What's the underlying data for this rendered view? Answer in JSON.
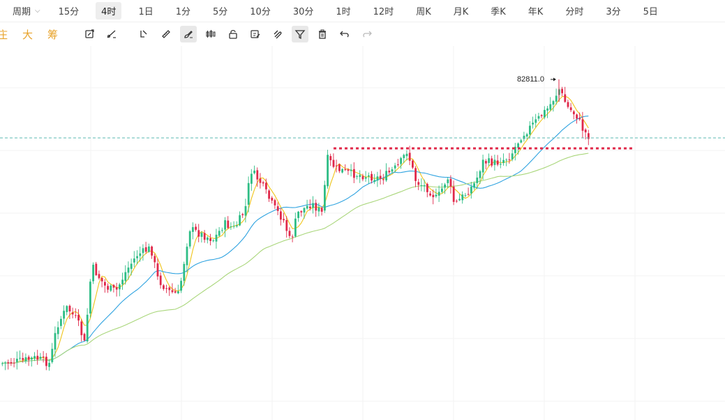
{
  "period_bar": {
    "label": "周期",
    "tabs": [
      {
        "label": "15分",
        "active": false
      },
      {
        "label": "4时",
        "active": true
      },
      {
        "label": "1日",
        "active": false
      },
      {
        "label": "1分",
        "active": false
      },
      {
        "label": "5分",
        "active": false
      },
      {
        "label": "10分",
        "active": false
      },
      {
        "label": "30分",
        "active": false
      },
      {
        "label": "1时",
        "active": false
      },
      {
        "label": "12时",
        "active": false
      },
      {
        "label": "周K",
        "active": false
      },
      {
        "label": "月K",
        "active": false
      },
      {
        "label": "季K",
        "active": false
      },
      {
        "label": "年K",
        "active": false
      },
      {
        "label": "分时",
        "active": false
      },
      {
        "label": "3分",
        "active": false
      },
      {
        "label": "5日",
        "active": false
      }
    ]
  },
  "toolbar": {
    "brand_chars": [
      "庄",
      "大",
      "筹"
    ],
    "tools": [
      {
        "name": "rotate-chart-icon",
        "active": false
      },
      {
        "name": "draw-line-icon",
        "active": false
      },
      {
        "name": "line-tool-icon",
        "active": false
      },
      {
        "name": "ruler-icon",
        "active": false
      },
      {
        "name": "brush-icon",
        "active": true
      },
      {
        "name": "candle-icon",
        "active": false
      },
      {
        "name": "lock-icon",
        "active": false
      },
      {
        "name": "edit-icon",
        "active": false
      },
      {
        "name": "magnet-icon",
        "active": false
      },
      {
        "name": "filter-icon",
        "active": true
      },
      {
        "name": "trash-icon",
        "active": false
      },
      {
        "name": "undo-icon",
        "active": false
      },
      {
        "name": "redo-icon",
        "active": false
      }
    ]
  },
  "chart": {
    "high_price_label": "82811.0",
    "colors": {
      "up": "#2ebd85",
      "down": "#e0294a",
      "ma_short": "#f0c419",
      "ma_mid": "#2fa3e0",
      "ma_long": "#a9d67a",
      "price_line": "#5bb8b0",
      "resistance": "#e0294a"
    }
  }
}
